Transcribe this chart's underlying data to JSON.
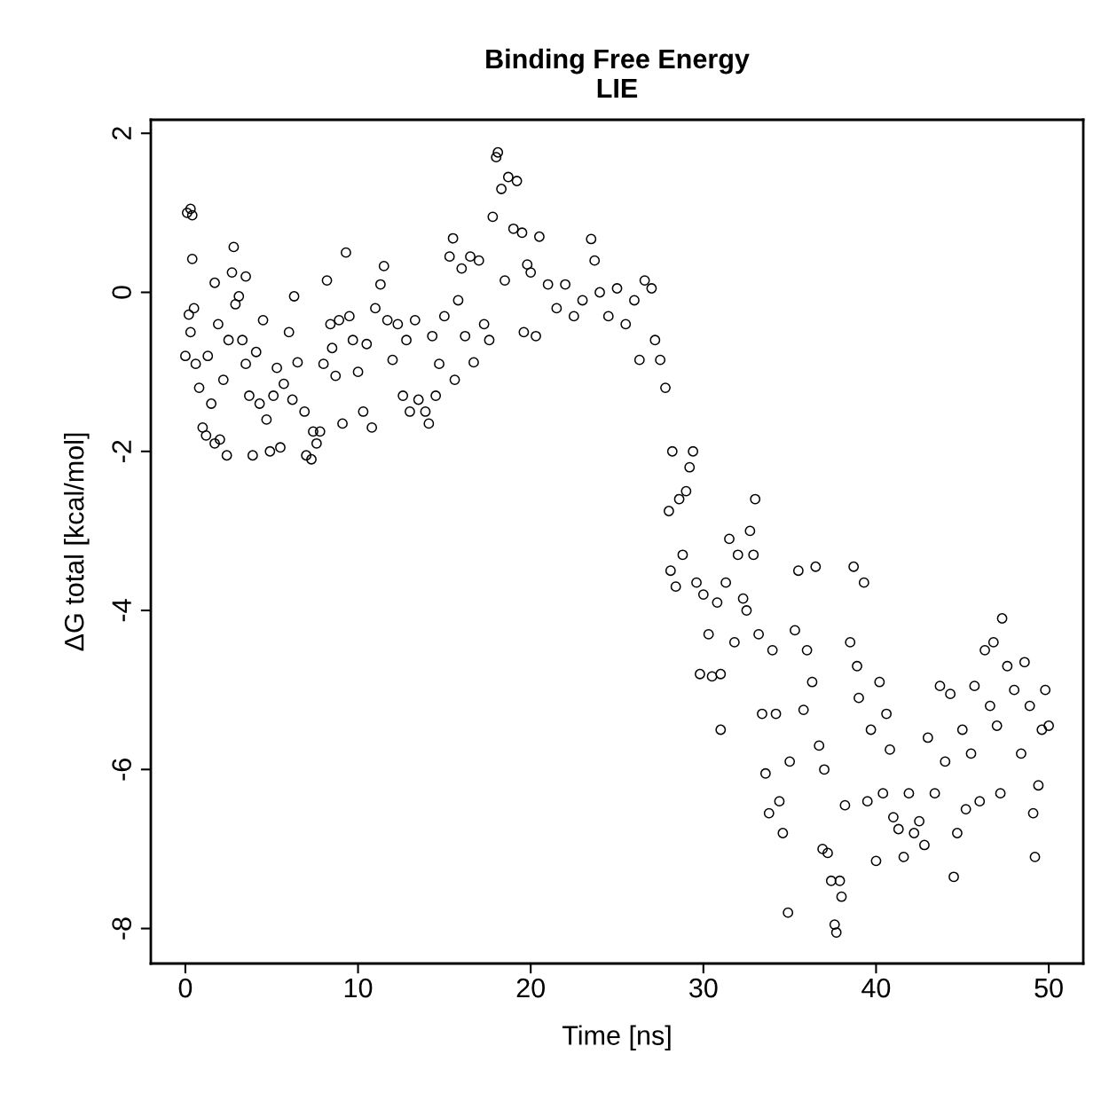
{
  "chart_data": {
    "type": "scatter",
    "title": "Binding Free Energy\nLIE",
    "xlabel": "Time [ns]",
    "ylabel": "ΔG total [kcal/mol]",
    "xlim": [
      -2,
      52
    ],
    "ylim": [
      -8.44,
      2.17
    ],
    "xticks": [
      0,
      10,
      20,
      30,
      40,
      50
    ],
    "yticks": [
      {
        "value": -8,
        "label": "-8"
      },
      {
        "value": -6,
        "label": "-6"
      },
      {
        "value": -4,
        "label": "-4"
      },
      {
        "value": -2,
        "label": "-2"
      },
      0,
      2
    ],
    "grid": false,
    "marker": "circle",
    "x": [
      0,
      0.1,
      0.3,
      0.4,
      0.4,
      0.2,
      0.3,
      0.5,
      0.6,
      0.8,
      1.0,
      1.2,
      1.3,
      1.5,
      1.7,
      1.7,
      1.9,
      2.0,
      2.2,
      2.4,
      2.5,
      2.7,
      2.8,
      2.9,
      3.1,
      3.3,
      3.5,
      3.5,
      3.7,
      3.9,
      4.1,
      4.3,
      4.5,
      4.7,
      4.9,
      5.1,
      5.3,
      5.5,
      5.7,
      6.0,
      6.2,
      6.3,
      6.5,
      6.9,
      7.0,
      7.3,
      7.4,
      7.6,
      7.8,
      8.0,
      8.2,
      8.4,
      8.5,
      8.7,
      8.9,
      9.1,
      9.3,
      9.5,
      9.7,
      10,
      10.3,
      10.5,
      10.8,
      11.0,
      11.3,
      11.5,
      11.7,
      12.0,
      12.3,
      12.6,
      12.8,
      13.0,
      13.3,
      13.5,
      13.9,
      14.1,
      14.3,
      14.5,
      14.7,
      15.0,
      15.3,
      15.5,
      15.6,
      15.8,
      16.0,
      16.2,
      16.5,
      16.7,
      17.0,
      17.3,
      17.6,
      17.8,
      18.0,
      18.1,
      18.3,
      18.5,
      18.7,
      19.0,
      19.2,
      19.5,
      19.6,
      19.8,
      20.0,
      20.3,
      20.5,
      21,
      21.5,
      22,
      22.5,
      23,
      23.5,
      23.7,
      24,
      24.5,
      25,
      25.5,
      26,
      26.3,
      26.6,
      27,
      27.2,
      27.5,
      27.8,
      28.0,
      28.1,
      28.2,
      28.4,
      28.6,
      28.8,
      29.0,
      29.2,
      29.4,
      29.6,
      29.8,
      30.0,
      30.3,
      30.5,
      30.8,
      31.0,
      31.0,
      31.3,
      31.5,
      31.8,
      32.0,
      32.3,
      32.5,
      32.7,
      32.9,
      33.0,
      33.2,
      33.4,
      33.6,
      33.8,
      34.0,
      34.2,
      34.4,
      34.6,
      34.9,
      35.0,
      35.3,
      35.5,
      35.8,
      36.0,
      36.3,
      36.5,
      36.7,
      36.9,
      37.0,
      37.2,
      37.4,
      37.6,
      37.7,
      37.9,
      38.0,
      38.2,
      38.5,
      38.7,
      38.9,
      39.0,
      39.3,
      39.5,
      39.7,
      40.0,
      40.2,
      40.4,
      40.6,
      40.8,
      41.0,
      41.3,
      41.6,
      41.9,
      42.2,
      42.5,
      42.8,
      43.0,
      43.4,
      43.7,
      44.0,
      44.3,
      44.5,
      44.7,
      45.0,
      45.2,
      45.5,
      45.7,
      46.0,
      46.3,
      46.6,
      46.8,
      47.0,
      47.2,
      47.3,
      47.6,
      48.0,
      48.4,
      48.6,
      48.9,
      49.1,
      49.2,
      49.4,
      49.6,
      49.8,
      50.0
    ],
    "values": [
      -0.8,
      1.0,
      1.05,
      0.97,
      0.42,
      -0.28,
      -0.5,
      -0.2,
      -0.9,
      -1.2,
      -1.7,
      -1.8,
      -0.8,
      -1.4,
      -1.9,
      0.12,
      -0.4,
      -1.85,
      -1.1,
      -2.05,
      -0.6,
      0.25,
      0.57,
      -0.15,
      -0.05,
      -0.6,
      -0.9,
      0.2,
      -1.3,
      -2.05,
      -0.75,
      -1.4,
      -0.35,
      -1.6,
      -2.0,
      -1.3,
      -0.95,
      -1.95,
      -1.15,
      -0.5,
      -1.35,
      -0.05,
      -0.88,
      -1.5,
      -2.05,
      -2.1,
      -1.75,
      -1.9,
      -1.75,
      -0.9,
      0.15,
      -0.4,
      -0.7,
      -1.05,
      -0.35,
      -1.65,
      0.5,
      -0.3,
      -0.6,
      -1.0,
      -1.5,
      -0.65,
      -1.7,
      -0.2,
      0.1,
      0.33,
      -0.35,
      -0.85,
      -0.4,
      -1.3,
      -0.6,
      -1.5,
      -0.35,
      -1.35,
      -1.5,
      -1.65,
      -0.55,
      -1.3,
      -0.9,
      -0.3,
      0.45,
      0.68,
      -1.1,
      -0.1,
      0.3,
      -0.55,
      0.45,
      -0.88,
      0.4,
      -0.4,
      -0.6,
      0.95,
      1.7,
      1.76,
      1.3,
      0.15,
      1.45,
      0.8,
      1.4,
      0.75,
      -0.5,
      0.35,
      0.25,
      -0.55,
      0.7,
      0.1,
      -0.2,
      0.1,
      -0.3,
      -0.1,
      0.67,
      0.4,
      0.0,
      -0.3,
      0.05,
      -0.4,
      -0.1,
      -0.85,
      0.15,
      0.05,
      -0.6,
      -0.85,
      -1.2,
      -2.75,
      -3.5,
      -2.0,
      -3.7,
      -2.6,
      -3.3,
      -2.5,
      -2.2,
      -2.0,
      -3.65,
      -4.8,
      -3.8,
      -4.3,
      -4.83,
      -3.9,
      -4.8,
      -5.5,
      -3.65,
      -3.1,
      -4.4,
      -3.3,
      -3.85,
      -4.0,
      -3.0,
      -3.3,
      -2.6,
      -4.3,
      -5.3,
      -6.05,
      -6.55,
      -4.5,
      -5.3,
      -6.4,
      -6.8,
      -7.8,
      -5.9,
      -4.25,
      -3.5,
      -5.25,
      -4.5,
      -4.9,
      -3.45,
      -5.7,
      -7.0,
      -6.0,
      -7.05,
      -7.4,
      -7.95,
      -8.05,
      -7.4,
      -7.6,
      -6.45,
      -4.4,
      -3.45,
      -4.7,
      -5.1,
      -3.65,
      -6.4,
      -5.5,
      -7.15,
      -4.9,
      -6.3,
      -5.3,
      -5.75,
      -6.6,
      -6.75,
      -7.1,
      -6.3,
      -6.8,
      -6.65,
      -6.95,
      -5.6,
      -6.3,
      -4.95,
      -5.9,
      -5.05,
      -7.35,
      -6.8,
      -5.5,
      -6.5,
      -5.8,
      -4.95,
      -6.4,
      -4.5,
      -5.2,
      -4.4,
      -5.45,
      -6.3,
      -4.1,
      -4.7,
      -5.0,
      -5.8,
      -4.65,
      -5.2,
      -6.55,
      -7.1,
      -6.2,
      -5.5,
      -5.0,
      -5.45
    ],
    "color": "#000000"
  }
}
